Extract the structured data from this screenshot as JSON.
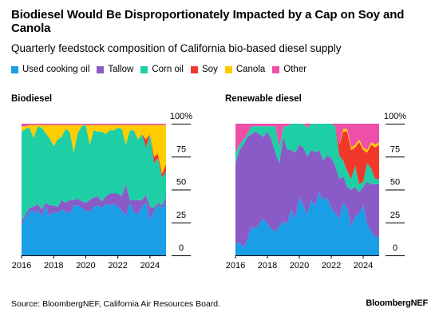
{
  "title": "Biodiesel Would Be Disproportionately Impacted by a Cap on Soy and Canola",
  "subtitle": "Quarterly feedstock composition of California bio-based diesel supply",
  "source": "Source: BloombergNEF, California Air Resources Board.",
  "brand": "BloombergNEF",
  "legend": [
    {
      "label": "Used cooking oil",
      "color": "#1a9ee6"
    },
    {
      "label": "Tallow",
      "color": "#8a5bc6"
    },
    {
      "label": "Corn oil",
      "color": "#1ecfa6"
    },
    {
      "label": "Soy",
      "color": "#f0392b"
    },
    {
      "label": "Canola",
      "color": "#ffcc00"
    },
    {
      "label": "Other",
      "color": "#ee4fa8"
    }
  ],
  "chart_data": [
    {
      "type": "area",
      "stacked": true,
      "title": "Biodiesel",
      "x_start": 2016.0,
      "x_step": 0.25,
      "xticks": [
        "2016",
        "2018",
        "2020",
        "2022",
        "2024"
      ],
      "yticks": [
        "0",
        "25",
        "50",
        "75",
        "100%"
      ],
      "ylim": [
        0,
        100
      ],
      "series": [
        {
          "name": "Used cooking oil",
          "color": "#1a9ee6",
          "values": [
            23,
            29,
            34,
            33,
            34,
            30,
            37,
            30,
            33,
            32,
            35,
            33,
            32,
            38,
            38,
            36,
            34,
            33,
            37,
            38,
            36,
            39,
            38,
            39,
            37,
            34,
            30,
            40,
            33,
            31,
            37,
            40,
            27,
            34,
            38,
            36,
            40
          ]
        },
        {
          "name": "Tallow",
          "color": "#8a5bc6",
          "values": [
            3,
            3,
            2,
            4,
            5,
            5,
            3,
            8,
            5,
            5,
            7,
            7,
            10,
            4,
            5,
            5,
            6,
            9,
            7,
            7,
            5,
            6,
            9,
            8,
            10,
            11,
            24,
            2,
            9,
            11,
            5,
            6,
            10,
            2,
            2,
            2,
            4
          ]
        },
        {
          "name": "Corn oil",
          "color": "#1ecfa6",
          "values": [
            68,
            64,
            61,
            52,
            59,
            62,
            53,
            51,
            45,
            51,
            48,
            56,
            52,
            36,
            50,
            57,
            59,
            42,
            51,
            49,
            53,
            47,
            48,
            48,
            50,
            51,
            30,
            53,
            53,
            46,
            50,
            36,
            55,
            34,
            34,
            21,
            20
          ]
        },
        {
          "name": "Soy",
          "color": "#f0392b",
          "values": [
            0,
            0,
            0,
            0,
            0,
            0,
            0,
            0,
            0,
            0,
            0,
            0,
            0,
            0,
            0,
            0,
            0,
            0,
            0,
            0,
            0,
            0,
            0,
            0,
            0,
            0,
            0,
            0,
            0,
            0,
            0,
            6,
            0,
            5,
            3,
            3,
            5
          ]
        },
        {
          "name": "Canola",
          "color": "#ffcc00",
          "values": [
            4,
            2,
            2,
            10,
            1,
            2,
            6,
            10,
            16,
            11,
            9,
            3,
            5,
            21,
            6,
            1,
            0,
            15,
            4,
            5,
            5,
            7,
            4,
            4,
            2,
            3,
            15,
            4,
            4,
            11,
            7,
            11,
            7,
            24,
            22,
            37,
            30
          ]
        },
        {
          "name": "Other",
          "color": "#ee4fa8",
          "values": [
            2,
            2,
            1,
            1,
            1,
            1,
            1,
            1,
            1,
            1,
            1,
            1,
            1,
            1,
            1,
            1,
            1,
            1,
            1,
            1,
            1,
            1,
            1,
            1,
            1,
            1,
            1,
            1,
            1,
            1,
            1,
            1,
            1,
            1,
            1,
            1,
            1
          ]
        }
      ]
    },
    {
      "type": "area",
      "stacked": true,
      "title": "Renewable diesel",
      "x_start": 2016.0,
      "x_step": 0.25,
      "xticks": [
        "2016",
        "2018",
        "2020",
        "2022",
        "2024"
      ],
      "yticks": [
        "0",
        "25",
        "50",
        "75",
        "100%"
      ],
      "ylim": [
        0,
        100
      ],
      "series": [
        {
          "name": "Used cooking oil",
          "color": "#1a9ee6",
          "values": [
            8,
            10,
            6,
            12,
            22,
            20,
            24,
            28,
            24,
            20,
            18,
            22,
            26,
            24,
            35,
            28,
            44,
            38,
            31,
            42,
            38,
            48,
            42,
            44,
            36,
            32,
            28,
            40,
            36,
            22,
            30,
            32,
            38,
            24,
            18,
            14,
            14
          ]
        },
        {
          "name": "Tallow",
          "color": "#8a5bc6",
          "values": [
            62,
            70,
            78,
            78,
            70,
            74,
            68,
            62,
            70,
            68,
            60,
            48,
            64,
            56,
            45,
            50,
            40,
            44,
            44,
            38,
            40,
            32,
            30,
            32,
            38,
            36,
            30,
            20,
            16,
            28,
            22,
            16,
            14,
            32,
            36,
            40,
            40
          ]
        },
        {
          "name": "Corn oil",
          "color": "#1ecfa6",
          "values": [
            8,
            4,
            4,
            2,
            6,
            4,
            6,
            8,
            4,
            10,
            20,
            12,
            8,
            18,
            20,
            22,
            16,
            18,
            22,
            20,
            22,
            20,
            28,
            24,
            26,
            30,
            18,
            12,
            12,
            8,
            16,
            6,
            4,
            14,
            12,
            4,
            4
          ]
        },
        {
          "name": "Soy",
          "color": "#f0392b",
          "values": [
            0,
            0,
            0,
            0,
            0,
            0,
            0,
            0,
            0,
            0,
            0,
            0,
            0,
            0,
            0,
            0,
            0,
            0,
            0,
            0,
            0,
            0,
            0,
            0,
            0,
            0,
            8,
            22,
            30,
            22,
            14,
            32,
            24,
            8,
            18,
            24,
            26
          ]
        },
        {
          "name": "Canola",
          "color": "#ffcc00",
          "values": [
            0,
            0,
            0,
            0,
            0,
            0,
            0,
            0,
            0,
            0,
            0,
            0,
            0,
            0,
            0,
            0,
            0,
            0,
            0,
            0,
            0,
            0,
            0,
            0,
            0,
            0,
            0,
            2,
            2,
            2,
            2,
            2,
            2,
            2,
            2,
            2,
            2
          ]
        },
        {
          "name": "Other",
          "color": "#ee4fa8",
          "values": [
            22,
            16,
            12,
            8,
            2,
            2,
            2,
            2,
            2,
            2,
            2,
            18,
            2,
            2,
            0,
            0,
            0,
            0,
            3,
            0,
            0,
            0,
            0,
            0,
            0,
            2,
            16,
            4,
            4,
            18,
            16,
            12,
            18,
            20,
            14,
            16,
            14
          ]
        }
      ]
    }
  ]
}
